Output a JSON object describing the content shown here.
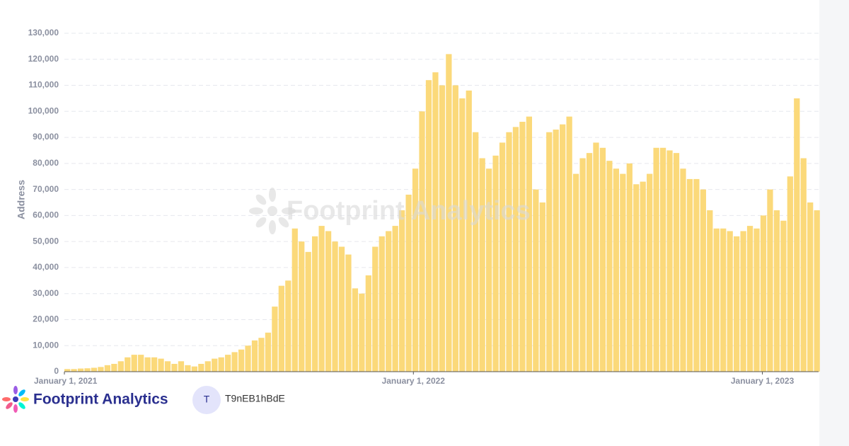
{
  "chart_data": {
    "type": "bar",
    "y_label": "Address",
    "watermark": "Footprint Analytics",
    "color": "#fbd97a",
    "grid": true,
    "x": [
      "2021-01-01",
      "2021-01-08",
      "2021-01-15",
      "2021-01-22",
      "2021-01-29",
      "2021-02-05",
      "2021-02-12",
      "2021-02-19",
      "2021-02-26",
      "2021-03-05",
      "2021-03-12",
      "2021-03-19",
      "2021-03-26",
      "2021-04-02",
      "2021-04-09",
      "2021-04-16",
      "2021-04-23",
      "2021-04-30",
      "2021-05-07",
      "2021-05-14",
      "2021-05-21",
      "2021-05-28",
      "2021-06-04",
      "2021-06-11",
      "2021-06-18",
      "2021-06-25",
      "2021-07-02",
      "2021-07-09",
      "2021-07-16",
      "2021-07-23",
      "2021-07-30",
      "2021-08-06",
      "2021-08-13",
      "2021-08-20",
      "2021-08-27",
      "2021-09-03",
      "2021-09-10",
      "2021-09-17",
      "2021-09-24",
      "2021-10-01",
      "2021-10-08",
      "2021-10-15",
      "2021-10-22",
      "2021-10-29",
      "2021-11-05",
      "2021-11-12",
      "2021-11-19",
      "2021-11-26",
      "2021-12-03",
      "2021-12-10",
      "2021-12-17",
      "2021-12-24",
      "2021-12-31",
      "2022-01-07",
      "2022-01-14",
      "2022-01-21",
      "2022-01-28",
      "2022-02-04",
      "2022-02-11",
      "2022-02-18",
      "2022-02-25",
      "2022-03-04",
      "2022-03-11",
      "2022-03-18",
      "2022-03-25",
      "2022-04-01",
      "2022-04-08",
      "2022-04-15",
      "2022-04-22",
      "2022-04-29",
      "2022-05-06",
      "2022-05-13",
      "2022-05-20",
      "2022-05-27",
      "2022-06-03",
      "2022-06-10",
      "2022-06-17",
      "2022-06-24",
      "2022-07-01",
      "2022-07-08",
      "2022-07-15",
      "2022-07-22",
      "2022-07-29",
      "2022-08-05",
      "2022-08-12",
      "2022-08-19",
      "2022-08-26",
      "2022-09-02",
      "2022-09-09",
      "2022-09-16",
      "2022-09-23",
      "2022-09-30",
      "2022-10-07",
      "2022-10-14",
      "2022-10-21",
      "2022-10-28",
      "2022-11-04",
      "2022-11-11",
      "2022-11-18",
      "2022-11-25",
      "2022-12-02",
      "2022-12-09",
      "2022-12-16",
      "2022-12-23",
      "2022-12-30",
      "2023-01-06",
      "2023-01-13",
      "2023-01-20",
      "2023-01-27",
      "2023-02-03",
      "2023-02-10",
      "2023-02-17",
      "2023-02-24"
    ],
    "values": [
      1000,
      1000,
      1200,
      1300,
      1500,
      1800,
      2500,
      3000,
      4000,
      5500,
      6500,
      6500,
      5500,
      5500,
      5000,
      4000,
      3000,
      4000,
      2500,
      2000,
      3000,
      4000,
      5000,
      5500,
      6500,
      7500,
      8500,
      10000,
      12000,
      13000,
      15000,
      25000,
      33000,
      35000,
      55000,
      50000,
      46000,
      52000,
      56000,
      54000,
      50000,
      48000,
      45000,
      32000,
      30000,
      37000,
      48000,
      52000,
      54000,
      56000,
      62000,
      68000,
      78000,
      100000,
      112000,
      115000,
      110000,
      122000,
      110000,
      105000,
      108000,
      92000,
      82000,
      78000,
      83000,
      88000,
      92000,
      94000,
      96000,
      98000,
      70000,
      65000,
      92000,
      93000,
      95000,
      98000,
      76000,
      82000,
      84000,
      88000,
      86000,
      81000,
      78000,
      76000,
      80000,
      72000,
      73000,
      76000,
      86000,
      86000,
      85000,
      84000,
      78000,
      74000,
      74000,
      70000,
      62000,
      55000,
      55000,
      54000,
      52000,
      54000,
      56000,
      55000,
      60000,
      70000,
      62000,
      58000,
      75000,
      105000,
      82000,
      65000,
      62000
    ],
    "xlim": [
      "2021-01-01",
      "2023-03-03"
    ],
    "xticks": [
      {
        "value": "2021-01-01",
        "label": "January 1, 2021"
      },
      {
        "value": "2022-01-01",
        "label": "January 1, 2022"
      },
      {
        "value": "2023-01-01",
        "label": "January 1, 2023"
      }
    ],
    "ylim": [
      0,
      130000
    ],
    "yticks": [
      0,
      {
        "value": 10000,
        "label": "10,000"
      },
      {
        "value": 20000,
        "label": "20,000"
      },
      {
        "value": 30000,
        "label": "30,000"
      },
      {
        "value": 40000,
        "label": "40,000"
      },
      {
        "value": 50000,
        "label": "50,000"
      },
      {
        "value": 60000,
        "label": "60,000"
      },
      {
        "value": 70000,
        "label": "70,000"
      },
      {
        "value": 80000,
        "label": "80,000"
      },
      {
        "value": 90000,
        "label": "90,000"
      },
      {
        "value": 100000,
        "label": "100,000"
      },
      {
        "value": 110000,
        "label": "110,000"
      },
      {
        "value": 120000,
        "label": "120,000"
      },
      {
        "value": 130000,
        "label": "130,000"
      }
    ]
  },
  "footer": {
    "brand": "Footprint Analytics",
    "avatar": "T",
    "user": "T9nEB1hBdE"
  }
}
